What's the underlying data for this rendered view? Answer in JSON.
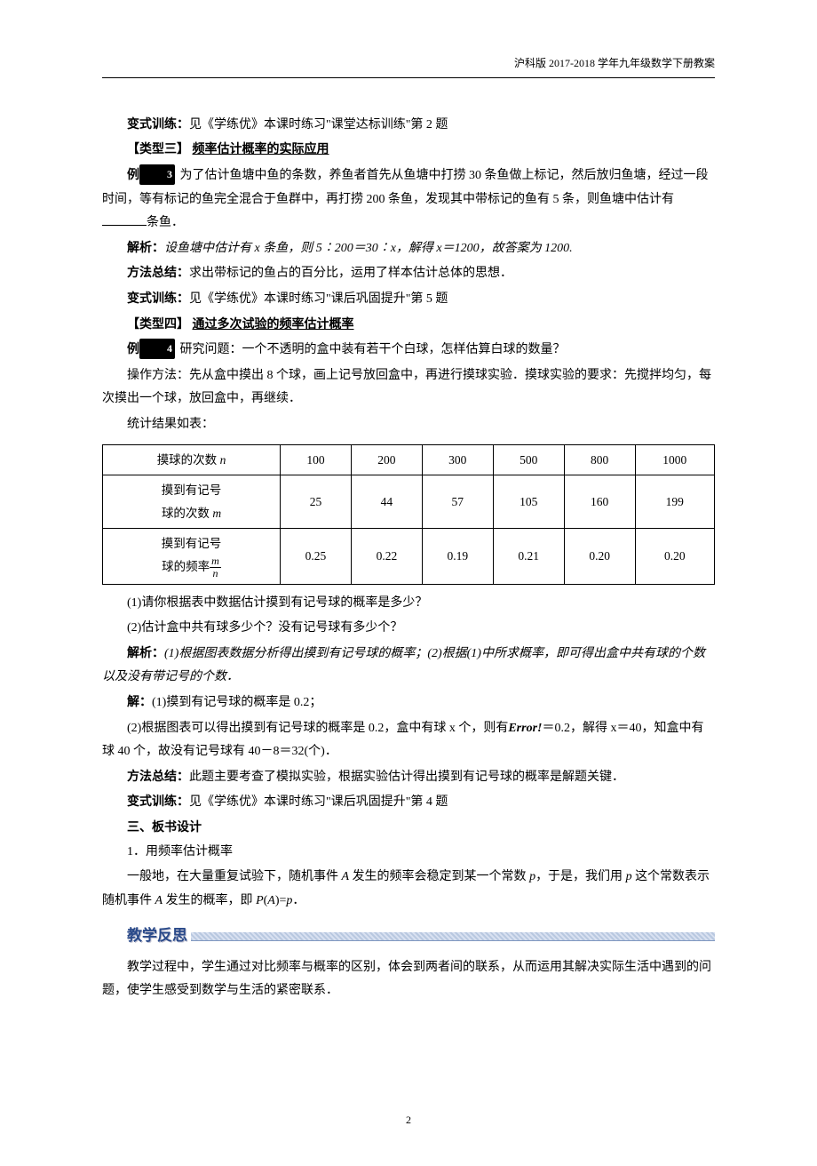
{
  "header": "沪科版 2017-2018 学年九年级数学下册教案",
  "p1": {
    "label": "变式训练：",
    "text": "见《学练优》本课时练习\"课堂达标训练\"第 2 题"
  },
  "type3": {
    "bracket": "【类型三】",
    "title": "频率估计概率的实际应用"
  },
  "ex3": {
    "prefix": "例",
    "num": "3",
    "body_a": " 为了估计鱼塘中鱼的条数，养鱼者首先从鱼塘中打捞 30 条鱼做上标记，然后放归鱼塘，经过一段时间，等有标记的鱼完全混合于鱼群中，再打捞 200 条鱼，发现其中带标记的鱼有 5 条，则鱼塘中估计有",
    "body_b": "条鱼．"
  },
  "ex3_analysis": {
    "label": "解析：",
    "text": "设鱼塘中估计有 x 条鱼，则 5∶200＝30∶x，解得 x＝1200，故答案为 1200."
  },
  "ex3_method": {
    "label": "方法总结：",
    "text": "求出带标记的鱼占的百分比，运用了样本估计总体的思想．"
  },
  "ex3_var": {
    "label": "变式训练：",
    "text": "见《学练优》本课时练习\"课后巩固提升\"第 5 题"
  },
  "type4": {
    "bracket": "【类型四】",
    "title": "通过多次试验的频率估计概率"
  },
  "ex4": {
    "prefix": "例",
    "num": "4",
    "q": " 研究问题：一个不透明的盒中装有若干个白球，怎样估算白球的数量？"
  },
  "ex4_op": "操作方法：先从盒中摸出 8 个球，画上记号放回盒中，再进行摸球实验．摸球实验的要求：先搅拌均匀，每次摸出一个球，放回盒中，再继续．",
  "ex4_stat": "统计结果如表：",
  "table": {
    "row1_label_a": "摸球的次数 ",
    "row1_label_b": "n",
    "row2_label_a": "摸到有记号",
    "row2_label_b": "球的次数 ",
    "row2_label_c": "m",
    "row3_label_a": "摸到有记号",
    "row3_label_b": "球的频率",
    "cols": [
      "100",
      "200",
      "300",
      "500",
      "800",
      "1000"
    ],
    "counts": [
      "25",
      "44",
      "57",
      "105",
      "160",
      "199"
    ],
    "freqs": [
      "0.25",
      "0.22",
      "0.19",
      "0.21",
      "0.20",
      "0.20"
    ]
  },
  "q1": "(1)请你根据表中数据估计摸到有记号球的概率是多少？",
  "q2": "(2)估计盒中共有球多少个？没有记号球有多少个？",
  "ex4_analysis": {
    "label": "解析：",
    "text": "(1)根据图表数据分析得出摸到有记号球的概率；(2)根据(1)中所求概率，即可得出盒中共有球的个数以及没有带记号的个数．"
  },
  "sol_label": "解：",
  "sol1": "(1)摸到有记号球的概率是 0.2；",
  "sol2_a": "(2)根据图表可以得出摸到有记号球的概率是 0.2，盒中有球 x 个，则有",
  "sol2_err": "Error!",
  "sol2_b": "＝0.2，解得 x＝40，知盒中有球 40 个，故没有记号球有 40－8＝32(个)．",
  "ex4_method": {
    "label": "方法总结：",
    "text": "此题主要考查了模拟实验，根据实验估计得出摸到有记号球的概率是解题关键．"
  },
  "ex4_var": {
    "label": "变式训练：",
    "text": "见《学练优》本课时练习\"课后巩固提升\"第 4 题"
  },
  "board": {
    "heading": "三、板书设计",
    "item1": "1．用频率估计概率"
  },
  "board_text_a": "一般地，在大量重复试验下，随机事件 ",
  "board_text_b": " 发生的频率会稳定到某一个常数 ",
  "board_text_c": "，于是，我们用 ",
  "board_text_d": " 这个常数表示随机事件 ",
  "board_text_e": " 发生的概率，即 ",
  "board_text_f": "．",
  "reflection_label": "教学反思",
  "reflection_text": "教学过程中，学生通过对比频率与概率的区别，体会到两者间的联系，从而运用其解决实际生活中遇到的问题，使学生感受到数学与生活的紧密联系．",
  "page_num": "2"
}
